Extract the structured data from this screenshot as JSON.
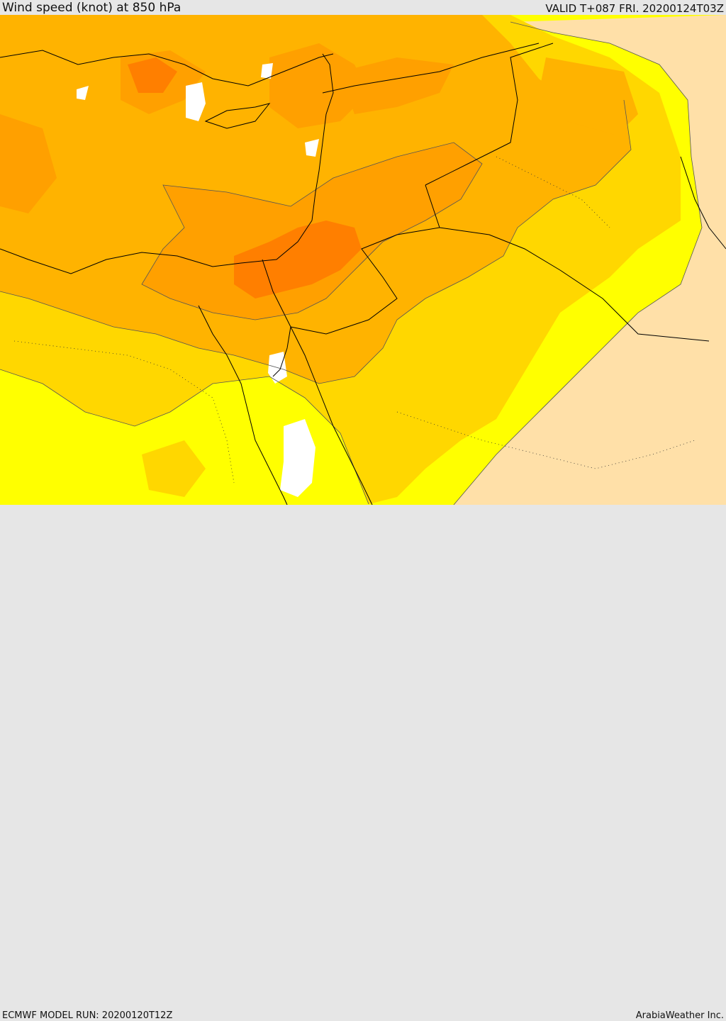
{
  "header": {
    "title": "Wind speed (knot) at 850 hPa",
    "valid": "VALID T+087 FRI. 20200124T03Z"
  },
  "footer": {
    "model_run": "ECMWF MODEL RUN: 20200120T12Z",
    "credit": "ArabiaWeather Inc."
  },
  "map": {
    "palette": {
      "calm": "#ffffff",
      "light": "#ffe0a8",
      "yellow": "#ffff00",
      "gold": "#ffd700",
      "amber": "#ffb300",
      "orange": "#ffa000",
      "deep_orange": "#ff7f00",
      "border": "#000000"
    }
  }
}
